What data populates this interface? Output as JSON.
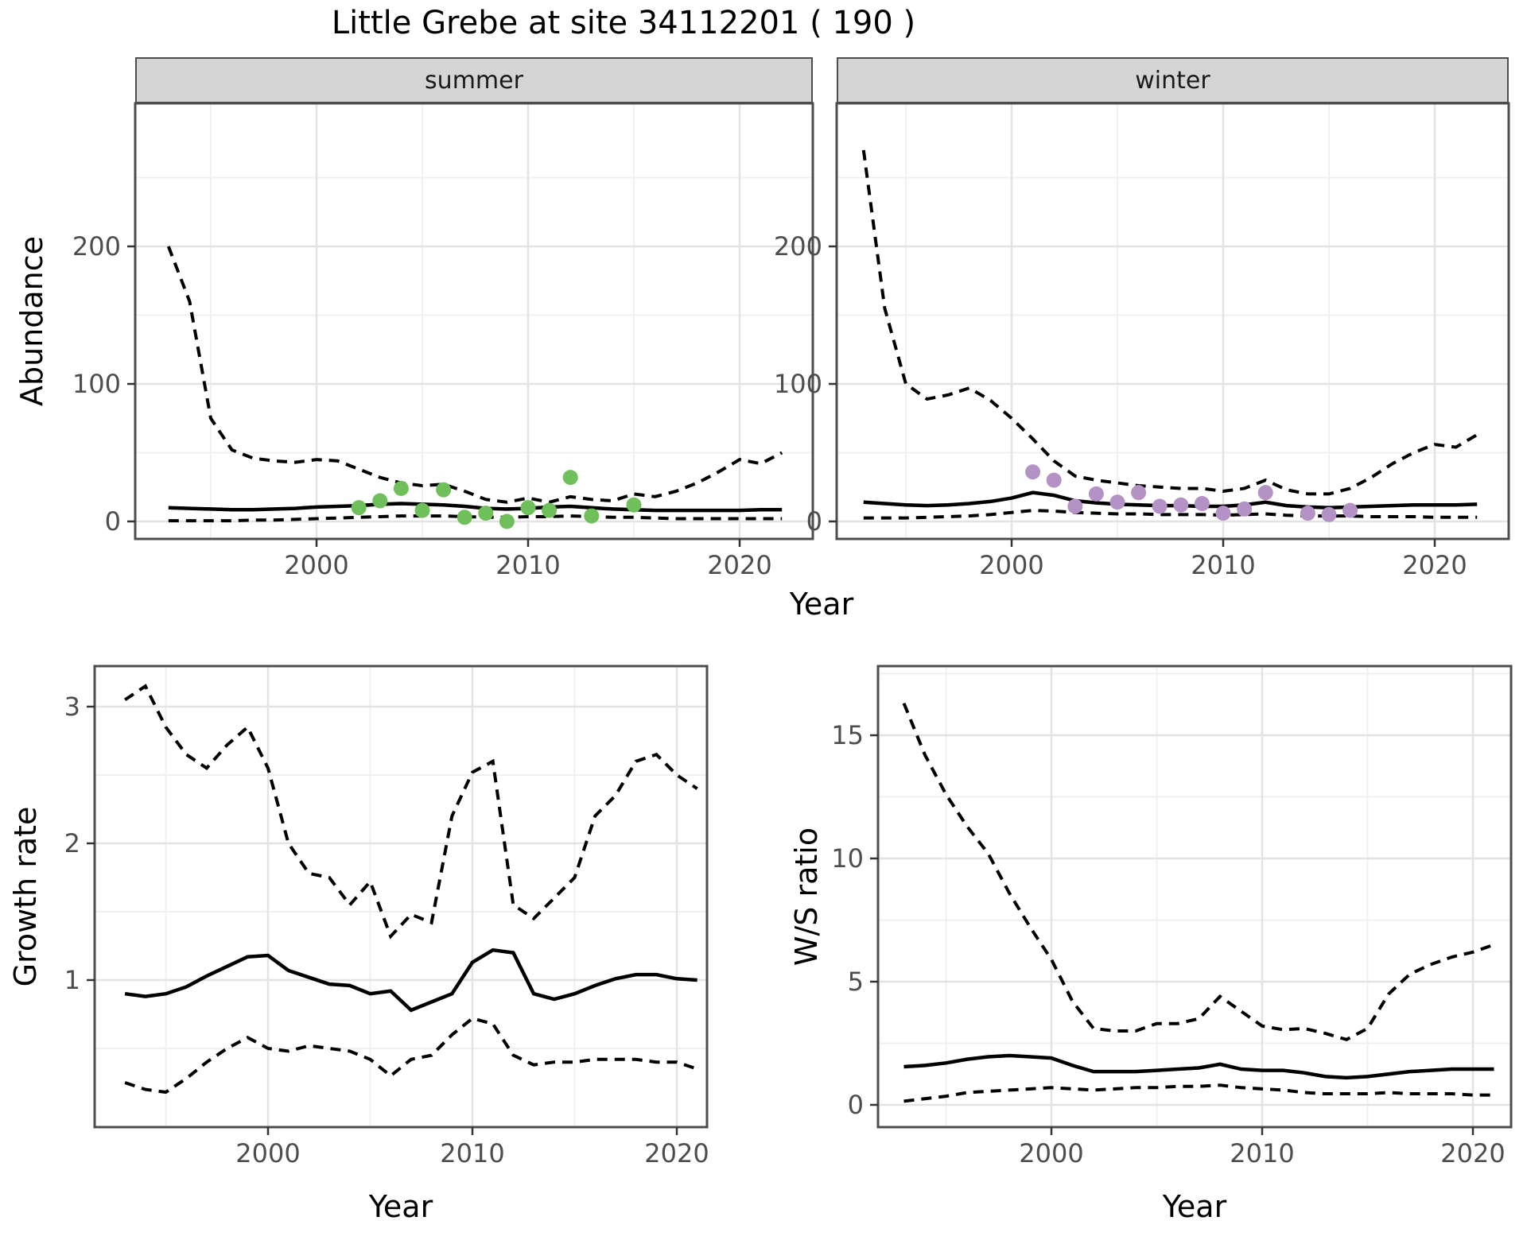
{
  "figure": {
    "title": "Little Grebe at site 34112201 ( 190 )",
    "top_axis_title": "Year"
  },
  "colors": {
    "observed_summer": "#6FBF5A",
    "observed_winter": "#B592C6",
    "line": "#000000",
    "strip_bg": "#D5D5D5",
    "grid_major": "#E3E3E3",
    "grid_minor": "#F0F0F0",
    "tick_label": "#4D4D4D",
    "panel_border": "#4D4D4D"
  },
  "chart_data": [
    {
      "type": "line",
      "facet_label": "summer",
      "ylabel": "Abundance",
      "xlabel": "Year",
      "x": [
        1993,
        1994,
        1995,
        1996,
        1997,
        1998,
        1999,
        2000,
        2001,
        2002,
        2003,
        2004,
        2005,
        2006,
        2007,
        2008,
        2009,
        2010,
        2011,
        2012,
        2013,
        2014,
        2015,
        2016,
        2017,
        2018,
        2019,
        2020,
        2021,
        2022
      ],
      "series": [
        {
          "name": "upper_95CI",
          "style": "dashed",
          "values": [
            200,
            160,
            75,
            52,
            46,
            44,
            43,
            45,
            44,
            38,
            32,
            28,
            26,
            27,
            22,
            16,
            14,
            17,
            14,
            18,
            16,
            15,
            20,
            18,
            22,
            28,
            36,
            45,
            42,
            50
          ]
        },
        {
          "name": "median",
          "style": "solid",
          "values": [
            10,
            9.5,
            9,
            8.5,
            8.5,
            9,
            9.5,
            10.5,
            11,
            11.5,
            12.5,
            13,
            12.5,
            12,
            11,
            9.5,
            9,
            9.5,
            10.5,
            11,
            10,
            9,
            8.5,
            8,
            8,
            8,
            8,
            8,
            8.5,
            8.5
          ]
        },
        {
          "name": "lower_95CI",
          "style": "dashed",
          "values": [
            0.5,
            0.5,
            0.5,
            0.5,
            1,
            1,
            1.5,
            2,
            2.5,
            3,
            3.5,
            4,
            4,
            4,
            3.5,
            3,
            3,
            3.5,
            3.5,
            4,
            3.5,
            3,
            3,
            2.5,
            2,
            2,
            2,
            2,
            2,
            2
          ]
        }
      ],
      "points": {
        "name": "observed_counts",
        "color": "#6FBF5A",
        "x": [
          2002,
          2003,
          2004,
          2005,
          2006,
          2007,
          2008,
          2009,
          2010,
          2011,
          2012,
          2013,
          2015
        ],
        "y": [
          10,
          15,
          24,
          8,
          23,
          3,
          6,
          0,
          10,
          8,
          32,
          4,
          12
        ]
      },
      "x_ticks": [
        2000,
        2010,
        2020
      ],
      "y_ticks": [
        0,
        100,
        200
      ],
      "xlim": [
        1991.4,
        2023.5
      ],
      "ylim": [
        -13,
        304
      ],
      "grid": true,
      "legend": "none"
    },
    {
      "type": "line",
      "facet_label": "winter",
      "ylabel": "Abundance",
      "xlabel": "Year",
      "x": [
        1993,
        1994,
        1995,
        1996,
        1997,
        1998,
        1999,
        2000,
        2001,
        2002,
        2003,
        2004,
        2005,
        2006,
        2007,
        2008,
        2009,
        2010,
        2011,
        2012,
        2013,
        2014,
        2015,
        2016,
        2017,
        2018,
        2019,
        2020,
        2021,
        2022
      ],
      "series": [
        {
          "name": "upper_95CI",
          "style": "dashed",
          "values": [
            270,
            155,
            100,
            89,
            92,
            97,
            88,
            75,
            60,
            44,
            33,
            30,
            28,
            26,
            25,
            24,
            24,
            22,
            24,
            30,
            23,
            20,
            20,
            24,
            32,
            42,
            50,
            56,
            54,
            63
          ]
        },
        {
          "name": "median",
          "style": "solid",
          "values": [
            14,
            13,
            12,
            11.5,
            12,
            13,
            14.5,
            17,
            21,
            19,
            15,
            13.5,
            12.5,
            12,
            11.5,
            11.5,
            11,
            11,
            12,
            14,
            11.5,
            10.5,
            10,
            10.5,
            11,
            11.5,
            12,
            12,
            12,
            12.5
          ]
        },
        {
          "name": "lower_95CI",
          "style": "dashed",
          "values": [
            2.5,
            2.5,
            2.5,
            3,
            3.5,
            4,
            5,
            6.5,
            8,
            7.5,
            6.5,
            6,
            5.5,
            5.5,
            5,
            5,
            5,
            4.5,
            5,
            5.5,
            4.5,
            4,
            4,
            4,
            3.5,
            3.5,
            3.5,
            3,
            3,
            3
          ]
        }
      ],
      "points": {
        "name": "observed_counts",
        "color": "#B592C6",
        "x": [
          2001,
          2002,
          2003,
          2004,
          2005,
          2006,
          2007,
          2008,
          2009,
          2010,
          2011,
          2012,
          2014,
          2015,
          2016
        ],
        "y": [
          36,
          30,
          11,
          20,
          14,
          21,
          11,
          12,
          13,
          6,
          9,
          21,
          6,
          5,
          8
        ]
      },
      "x_ticks": [
        2000,
        2010,
        2020
      ],
      "y_ticks": [
        0,
        100,
        200
      ],
      "xlim": [
        1991.7,
        2023.5
      ],
      "ylim": [
        -13,
        304
      ],
      "grid": true,
      "legend": "none"
    },
    {
      "type": "line",
      "facet_label": "",
      "ylabel": "Growth rate",
      "xlabel": "Year",
      "x": [
        1993,
        1994,
        1995,
        1996,
        1997,
        1998,
        1999,
        2000,
        2001,
        2002,
        2003,
        2004,
        2005,
        2006,
        2007,
        2008,
        2009,
        2010,
        2011,
        2012,
        2013,
        2014,
        2015,
        2016,
        2017,
        2018,
        2019,
        2020,
        2021
      ],
      "series": [
        {
          "name": "upper_95CI",
          "style": "dashed",
          "values": [
            3.05,
            3.15,
            2.85,
            2.65,
            2.55,
            2.72,
            2.85,
            2.55,
            2.0,
            1.78,
            1.75,
            1.55,
            1.72,
            1.32,
            1.48,
            1.42,
            2.2,
            2.52,
            2.6,
            1.55,
            1.45,
            1.6,
            1.75,
            2.2,
            2.35,
            2.6,
            2.65,
            2.5,
            2.4
          ]
        },
        {
          "name": "median",
          "style": "solid",
          "values": [
            0.9,
            0.88,
            0.9,
            0.95,
            1.03,
            1.1,
            1.17,
            1.18,
            1.07,
            1.02,
            0.97,
            0.96,
            0.9,
            0.92,
            0.78,
            0.84,
            0.9,
            1.13,
            1.22,
            1.2,
            0.9,
            0.86,
            0.9,
            0.96,
            1.01,
            1.04,
            1.04,
            1.01,
            1.0
          ]
        },
        {
          "name": "lower_95CI",
          "style": "dashed",
          "values": [
            0.25,
            0.2,
            0.18,
            0.28,
            0.4,
            0.5,
            0.58,
            0.5,
            0.48,
            0.52,
            0.5,
            0.48,
            0.42,
            0.3,
            0.42,
            0.45,
            0.6,
            0.72,
            0.68,
            0.45,
            0.38,
            0.4,
            0.4,
            0.42,
            0.42,
            0.42,
            0.4,
            0.4,
            0.35
          ]
        }
      ],
      "x_ticks": [
        2000,
        2010,
        2020
      ],
      "y_ticks": [
        1,
        2,
        3
      ],
      "xlim": [
        1991.5,
        2021.5
      ],
      "ylim": [
        -0.08,
        3.3
      ],
      "grid": true,
      "legend": "none"
    },
    {
      "type": "line",
      "facet_label": "",
      "ylabel": "W/S ratio",
      "xlabel": "Year",
      "x": [
        1993,
        1994,
        1995,
        1996,
        1997,
        1998,
        1999,
        2000,
        2001,
        2002,
        2003,
        2004,
        2005,
        2006,
        2007,
        2008,
        2009,
        2010,
        2011,
        2012,
        2013,
        2014,
        2015,
        2016,
        2017,
        2018,
        2019,
        2020,
        2021
      ],
      "series": [
        {
          "name": "upper_95CI",
          "style": "dashed",
          "values": [
            16.3,
            14.2,
            12.6,
            11.3,
            10.2,
            8.6,
            7.2,
            5.9,
            4.2,
            3.1,
            3.0,
            3.0,
            3.3,
            3.3,
            3.5,
            4.4,
            3.8,
            3.2,
            3.05,
            3.1,
            2.9,
            2.65,
            3.1,
            4.5,
            5.3,
            5.7,
            6.0,
            6.2,
            6.5
          ]
        },
        {
          "name": "median",
          "style": "solid",
          "values": [
            1.55,
            1.6,
            1.7,
            1.85,
            1.95,
            2.0,
            1.95,
            1.9,
            1.6,
            1.35,
            1.35,
            1.35,
            1.4,
            1.45,
            1.5,
            1.65,
            1.45,
            1.4,
            1.4,
            1.3,
            1.15,
            1.1,
            1.15,
            1.25,
            1.35,
            1.4,
            1.45,
            1.45,
            1.45
          ]
        },
        {
          "name": "lower_95CI",
          "style": "dashed",
          "values": [
            0.15,
            0.25,
            0.35,
            0.5,
            0.55,
            0.6,
            0.65,
            0.7,
            0.65,
            0.6,
            0.65,
            0.7,
            0.7,
            0.75,
            0.75,
            0.8,
            0.7,
            0.65,
            0.6,
            0.5,
            0.45,
            0.45,
            0.45,
            0.5,
            0.45,
            0.45,
            0.45,
            0.4,
            0.4
          ]
        }
      ],
      "x_ticks": [
        2000,
        2010,
        2020
      ],
      "y_ticks": [
        0,
        5,
        10,
        15
      ],
      "xlim": [
        1991.8,
        2021.8
      ],
      "ylim": [
        -1.7,
        17.8
      ],
      "grid": true,
      "legend": "none"
    }
  ]
}
